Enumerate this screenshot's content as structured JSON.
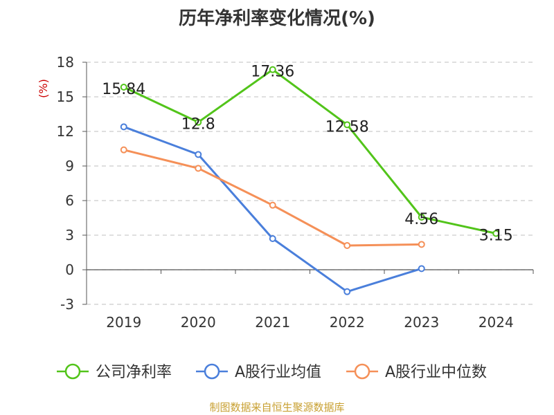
{
  "chart_data": {
    "type": "line",
    "title": "历年净利率变化情况(%)",
    "ylabel": "(%)",
    "xlabel": "",
    "categories": [
      "2019",
      "2020",
      "2021",
      "2022",
      "2023",
      "2024"
    ],
    "ylim": [
      -3,
      18
    ],
    "yticks": [
      -3,
      0,
      3,
      6,
      9,
      12,
      15,
      18
    ],
    "grid": true,
    "legend_position": "bottom",
    "series": [
      {
        "name": "公司净利率",
        "color": "#52c41a",
        "values": [
          15.84,
          12.8,
          17.36,
          12.58,
          4.56,
          3.15
        ],
        "labels": [
          "15.84",
          "12.8",
          "17.36",
          "12.58",
          "4.56",
          "3.15"
        ]
      },
      {
        "name": "A股行业均值",
        "color": "#4a7fdb",
        "values": [
          12.4,
          10.0,
          2.7,
          -1.9,
          0.1,
          null
        ]
      },
      {
        "name": "A股行业中位数",
        "color": "#f59058",
        "values": [
          10.4,
          8.8,
          5.6,
          2.1,
          2.2,
          null
        ]
      }
    ]
  },
  "source_text": "制图数据来自恒生聚源数据库"
}
